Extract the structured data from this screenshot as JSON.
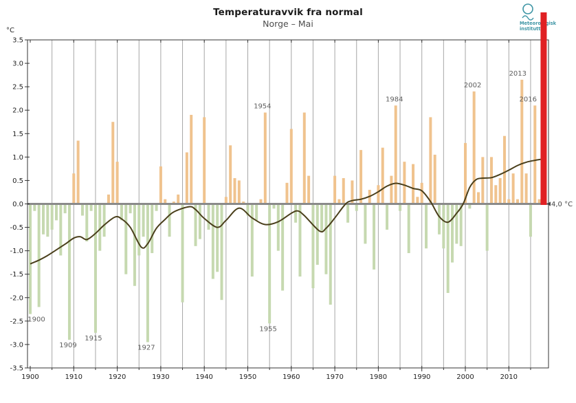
{
  "header": {
    "title": "Temperaturavvik fra normal",
    "subtitle": "Norge – Mai"
  },
  "logo": {
    "line1": "Meteorologisk",
    "line2": "institutt",
    "color": "#3e95a5"
  },
  "chart_data": {
    "type": "bar",
    "title": "Temperaturavvik fra normal",
    "subtitle": "Norge – Mai",
    "ylabel": "°C",
    "xlabel": "",
    "ylim": [
      -3.5,
      3.5
    ],
    "ytick_step": 0.5,
    "xlim": [
      1900,
      2019
    ],
    "xticks": [
      1900,
      1910,
      1920,
      1930,
      1940,
      1950,
      1960,
      1970,
      1980,
      1990,
      2000,
      2010
    ],
    "minor_tick_step": 5,
    "grid": "vertical-every-5-years",
    "legend": "none",
    "years_start": 1900,
    "values": [
      -2.35,
      -0.15,
      -2.2,
      -0.65,
      -0.7,
      -0.55,
      -0.35,
      -1.1,
      -0.2,
      -2.9,
      0.65,
      1.35,
      -0.25,
      -0.8,
      -0.15,
      -2.75,
      -1.0,
      -0.7,
      0.2,
      1.75,
      0.9,
      -0.35,
      -1.5,
      -0.2,
      -1.75,
      -1.1,
      -0.7,
      -2.95,
      -1.05,
      -0.15,
      0.8,
      0.1,
      -0.7,
      0.05,
      0.2,
      -2.1,
      1.1,
      1.9,
      -0.9,
      -0.75,
      1.85,
      -0.55,
      -1.6,
      -1.45,
      -2.05,
      0.15,
      1.25,
      0.55,
      0.5,
      0.05,
      -0.25,
      -1.55,
      -0.35,
      0.1,
      1.95,
      -2.55,
      -0.1,
      -1.0,
      -1.85,
      0.45,
      1.6,
      -0.4,
      -1.55,
      1.95,
      0.6,
      -1.8,
      -1.3,
      -0.6,
      -1.5,
      -2.15,
      0.6,
      0.1,
      0.55,
      -0.4,
      0.5,
      -0.15,
      1.15,
      -0.85,
      0.3,
      -1.4,
      0.4,
      1.2,
      -0.55,
      0.6,
      2.1,
      -0.15,
      0.9,
      -1.05,
      0.85,
      0.15,
      0.45,
      -0.95,
      1.85,
      1.05,
      -0.65,
      -0.95,
      -1.9,
      -1.25,
      -0.85,
      -0.9,
      1.3,
      -0.1,
      2.4,
      0.25,
      1.0,
      -1.0,
      1.0,
      0.4,
      0.55,
      1.45,
      0.1,
      0.65,
      0.1,
      2.65,
      0.65,
      -0.7,
      2.1,
      0.1
    ],
    "smoothed_line": [
      [
        1900,
        -1.28
      ],
      [
        1902,
        -1.2
      ],
      [
        1904,
        -1.1
      ],
      [
        1906,
        -0.98
      ],
      [
        1908,
        -0.86
      ],
      [
        1910,
        -0.73
      ],
      [
        1911.5,
        -0.7
      ],
      [
        1913,
        -0.76
      ],
      [
        1915,
        -0.63
      ],
      [
        1917,
        -0.45
      ],
      [
        1919.5,
        -0.28
      ],
      [
        1921,
        -0.32
      ],
      [
        1923,
        -0.5
      ],
      [
        1925.5,
        -0.92
      ],
      [
        1927,
        -0.85
      ],
      [
        1929,
        -0.52
      ],
      [
        1931,
        -0.33
      ],
      [
        1933,
        -0.17
      ],
      [
        1936.5,
        -0.06
      ],
      [
        1938,
        -0.12
      ],
      [
        1940,
        -0.31
      ],
      [
        1943,
        -0.5
      ],
      [
        1945,
        -0.35
      ],
      [
        1948,
        -0.09
      ],
      [
        1951,
        -0.3
      ],
      [
        1954,
        -0.44
      ],
      [
        1957,
        -0.38
      ],
      [
        1960,
        -0.2
      ],
      [
        1961.5,
        -0.15
      ],
      [
        1963,
        -0.25
      ],
      [
        1966.5,
        -0.58
      ],
      [
        1968,
        -0.52
      ],
      [
        1970,
        -0.3
      ],
      [
        1972.5,
        0.0
      ],
      [
        1974,
        0.07
      ],
      [
        1976,
        0.1
      ],
      [
        1978,
        0.16
      ],
      [
        1980,
        0.26
      ],
      [
        1982,
        0.38
      ],
      [
        1984,
        0.44
      ],
      [
        1986,
        0.4
      ],
      [
        1988,
        0.33
      ],
      [
        1990,
        0.28
      ],
      [
        1992,
        0.05
      ],
      [
        1994,
        -0.27
      ],
      [
        1996,
        -0.39
      ],
      [
        1998,
        -0.2
      ],
      [
        1999.5,
        0.0
      ],
      [
        2001,
        0.35
      ],
      [
        2002.5,
        0.52
      ],
      [
        2004,
        0.55
      ],
      [
        2006,
        0.56
      ],
      [
        2008,
        0.63
      ],
      [
        2010,
        0.72
      ],
      [
        2012,
        0.82
      ],
      [
        2014,
        0.89
      ],
      [
        2016,
        0.93
      ],
      [
        2017.3,
        0.95
      ]
    ],
    "annotations": [
      {
        "year": 1900,
        "text": "1900",
        "position": "below",
        "dx": 9
      },
      {
        "year": 1909,
        "text": "1909",
        "position": "below",
        "dx": -2
      },
      {
        "year": 1915,
        "text": "1915",
        "position": "below",
        "dx": -3
      },
      {
        "year": 1927,
        "text": "1927",
        "position": "below",
        "dx": -2
      },
      {
        "year": 1955,
        "text": "1955",
        "position": "below",
        "dx": -2
      },
      {
        "year": 1954,
        "text": "1954",
        "position": "above",
        "dx": -4
      },
      {
        "year": 1984,
        "text": "1984",
        "position": "above",
        "dx": -2
      },
      {
        "year": 2002,
        "text": "2002",
        "position": "above",
        "dx": -2
      },
      {
        "year": 2013,
        "text": "2013",
        "position": "above",
        "dx": -6
      },
      {
        "year": 2016,
        "text": "2016",
        "position": "above",
        "dx": -10
      }
    ],
    "latest": {
      "year": 2018,
      "value": 4.0,
      "label": "4,0 °C"
    },
    "colors": {
      "positive_bar": "#f0c38e",
      "negative_bar": "#c6d9b0",
      "smoothed_line": "#4a3f1b",
      "latest_bar": "#e02023",
      "zero_line": "#8a8a8a",
      "gridline": "#a6a6a6",
      "axis": "#333333",
      "tick_label": "#222222",
      "annotation": "#5e5e5e",
      "latest_label": "#444444"
    }
  }
}
